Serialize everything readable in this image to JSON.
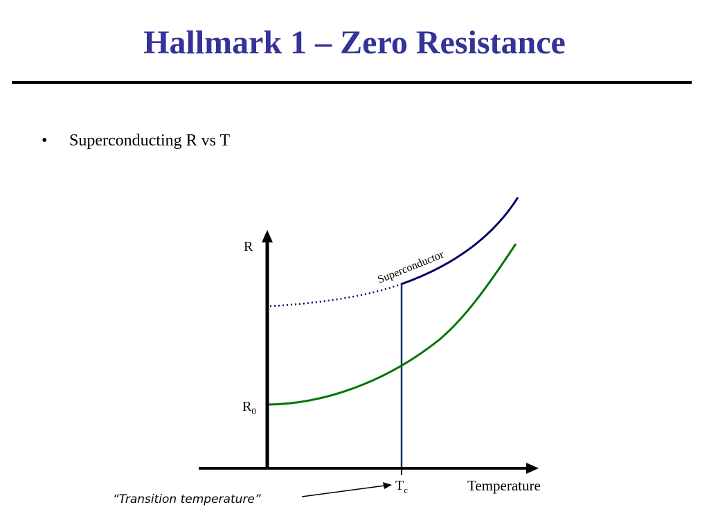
{
  "slide": {
    "title": "Hallmark 1 – Zero Resistance",
    "bullet_marker": "•",
    "bullet_text": "Superconducting R vs T"
  },
  "diagram": {
    "y_axis_label": "R",
    "r0_label_main": "R",
    "r0_label_sub": "0",
    "tc_label_main": "T",
    "tc_label_sub": "c",
    "x_axis_label": "Temperature",
    "curve_label": "Superconductor",
    "annotation": "“Transition temperature”"
  },
  "colors": {
    "title": "#333399",
    "superconductor_curve": "#000066",
    "normal_curve": "#007700",
    "tc_line": "#003366",
    "axes": "#000000"
  }
}
